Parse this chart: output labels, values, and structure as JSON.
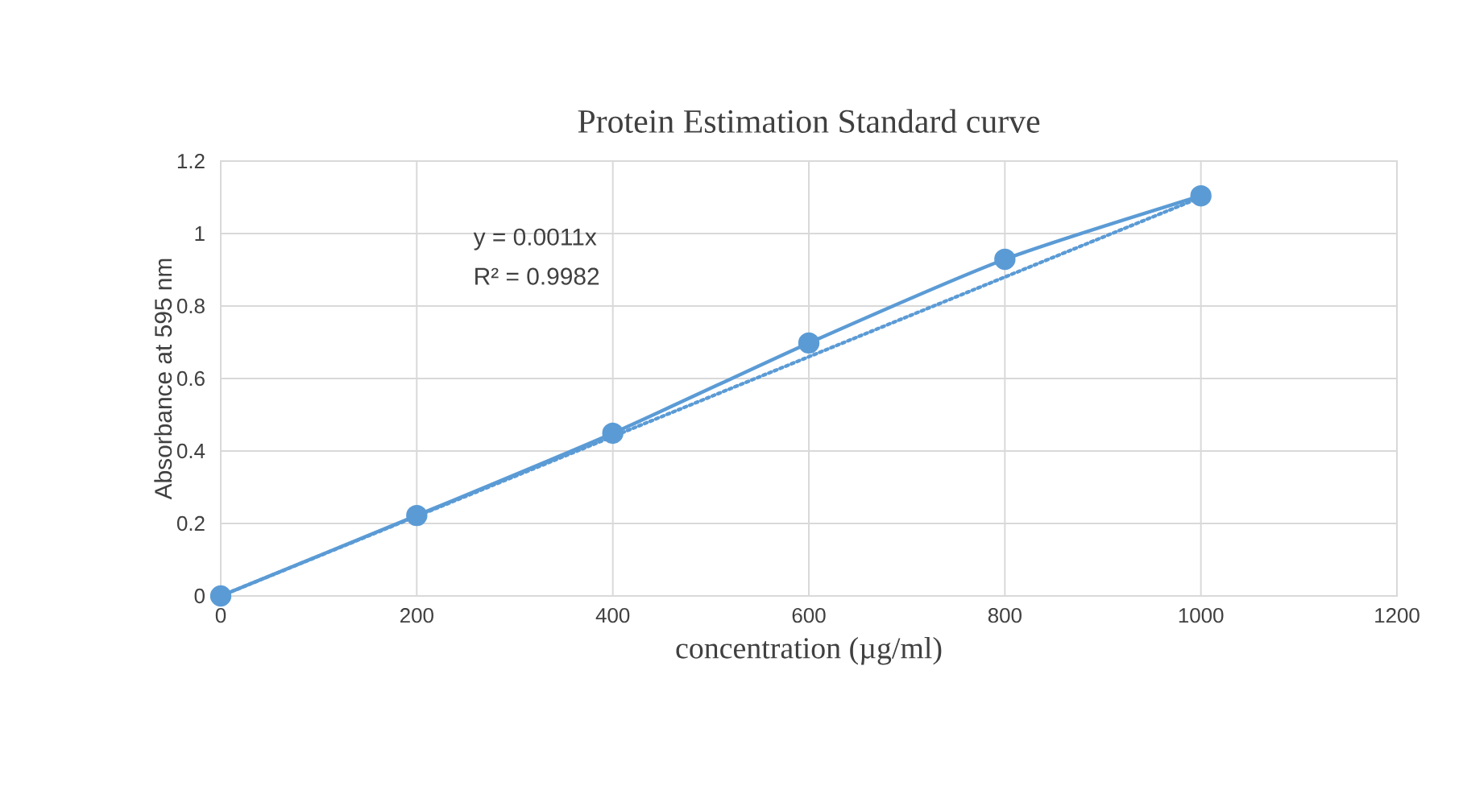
{
  "chart_data": {
    "type": "line",
    "title": "Protein Estimation Standard curve",
    "xlabel": "concentration (µg/ml)",
    "ylabel": "Absorbance at 595 nm",
    "xlim": [
      0,
      1200
    ],
    "xticks": [
      0,
      200,
      400,
      600,
      800,
      1000,
      1200
    ],
    "ylim": [
      0,
      1.2
    ],
    "yticks": [
      0,
      0.2,
      0.4,
      0.6,
      0.8,
      1,
      1.2
    ],
    "grid": true,
    "series": [
      {
        "color": "#5b9bd5",
        "x": [
          0,
          200,
          400,
          600,
          800,
          1000
        ],
        "values": [
          0,
          0.222,
          0.449,
          0.698,
          0.929,
          1.104
        ],
        "marker": "circle",
        "line_style": "solid"
      },
      {
        "color": "#5b9bd5",
        "x": [
          0,
          1000
        ],
        "values": [
          0,
          1.1
        ],
        "marker": "none",
        "line_style": "dotted"
      }
    ],
    "annotations": [
      "y = 0.0011x",
      "R² = 0.9982"
    ]
  }
}
